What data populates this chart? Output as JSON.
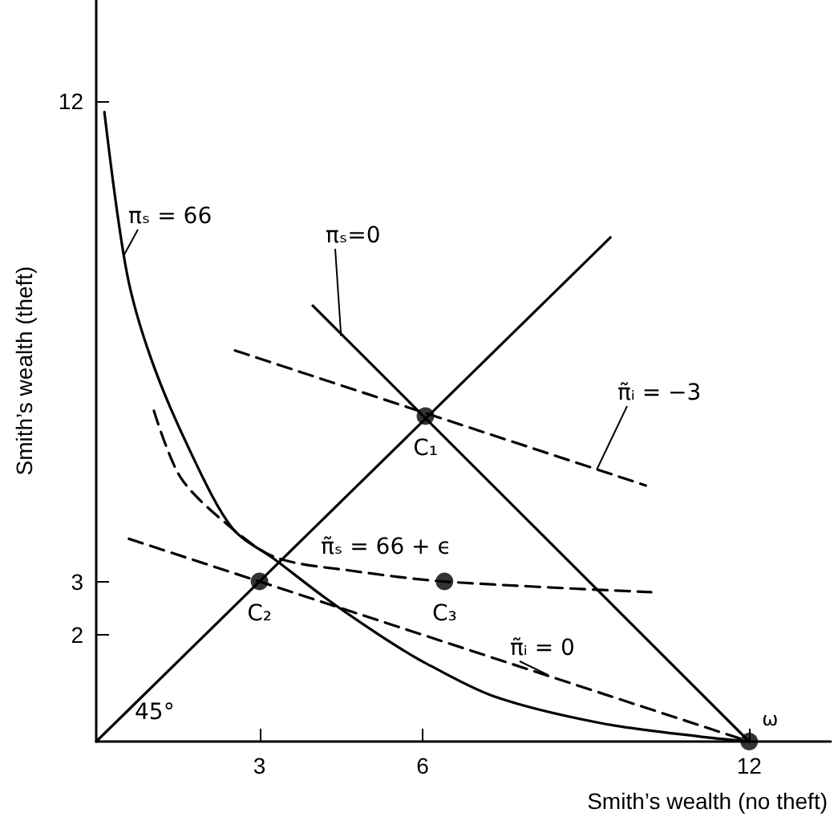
{
  "chart_data": {
    "type": "line",
    "xlabel": "Smith’s wealth (no theft)",
    "ylabel": "Smith’s wealth (theft)",
    "xlim": [
      0,
      13.5
    ],
    "ylim": [
      0,
      13.9
    ],
    "xticks": [
      3,
      6,
      12
    ],
    "yticks": [
      2,
      3,
      12
    ],
    "grid": false,
    "legend": false,
    "marker": "none",
    "series": [
      {
        "name": "πₛ = 66",
        "color": "#000000",
        "line_style": "solid",
        "x": [
          0.15,
          0.56,
          1.0,
          1.7,
          2.5,
          3.3,
          4.2,
          5.2,
          6.0,
          7.3,
          9.25,
          11.2,
          12
        ],
        "values": [
          11.8,
          8.8,
          7.2,
          5.5,
          4.0,
          3.4,
          2.7,
          2.0,
          1.5,
          0.85,
          0.35,
          0.08,
          0
        ]
      },
      {
        "name": "πₛ=0",
        "color": "#000000",
        "line_style": "solid",
        "x": [
          3.98,
          12
        ],
        "values": [
          8.17,
          0
        ]
      },
      {
        "color": "#000000",
        "line_style": "solid",
        "x": [
          0,
          9.45
        ],
        "values": [
          0,
          9.45
        ]
      },
      {
        "name": "π̃ᵢ = −3",
        "color": "#000000",
        "line_style": "dashed",
        "x": [
          2.55,
          10.1
        ],
        "values": [
          7.33,
          4.8
        ]
      },
      {
        "name": "π̃ᵢ = 0",
        "color": "#000000",
        "line_style": "dashed",
        "x": [
          0.6,
          12
        ],
        "values": [
          3.8,
          0
        ]
      },
      {
        "name": "π̃ₛ = 66 + ϵ",
        "color": "#000000",
        "line_style": "dashed",
        "x": [
          1.06,
          1.55,
          2.43,
          3.3,
          4.7,
          6.4,
          10.2
        ],
        "values": [
          6.2,
          4.95,
          4.05,
          3.45,
          3.2,
          3.0,
          2.8
        ]
      },
      {
        "type": "scatter",
        "color": "#000000",
        "marker": "circle",
        "x": [
          6.05,
          3,
          6.4,
          12
        ],
        "values": [
          6.1,
          3,
          3.0,
          0
        ]
      }
    ],
    "annotations": [
      {
        "text": "C₁",
        "x": 6.05,
        "y": 6.1
      },
      {
        "text": "C₂",
        "x": 3,
        "y": 3
      },
      {
        "text": "C₃",
        "x": 6.4,
        "y": 3.0
      },
      {
        "text": "ω",
        "x": 12,
        "y": 0
      },
      "45°"
    ]
  }
}
